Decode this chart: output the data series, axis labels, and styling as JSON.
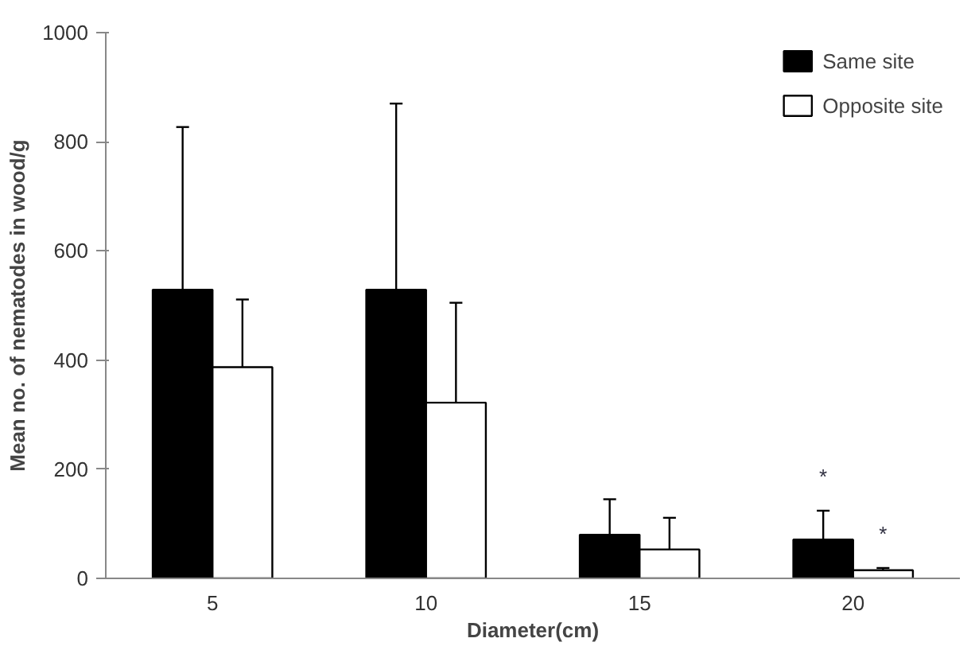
{
  "chart_data": {
    "type": "bar",
    "xlabel": "Diameter(cm)",
    "ylabel": "Mean no. of nematodes in wood/g",
    "categories": [
      "5",
      "10",
      "15",
      "20"
    ],
    "series": [
      {
        "name": "Same site",
        "color": "#000000",
        "values": [
          529,
          529,
          80,
          71
        ],
        "errors": [
          [
            529,
            827
          ],
          [
            529,
            870
          ],
          [
            80,
            145
          ],
          [
            71,
            124
          ]
        ]
      },
      {
        "name": "Opposite site",
        "color": "#ffffff",
        "values": [
          387,
          322,
          53,
          15
        ],
        "errors": [
          [
            387,
            511
          ],
          [
            322,
            505
          ],
          [
            53,
            111
          ],
          [
            15,
            19
          ]
        ]
      }
    ],
    "ylim": [
      0,
      1000
    ],
    "yticks": [
      0,
      200,
      400,
      600,
      800,
      1000
    ],
    "grid": false,
    "legend": "top right",
    "annotations": [
      "*",
      "*"
    ]
  }
}
